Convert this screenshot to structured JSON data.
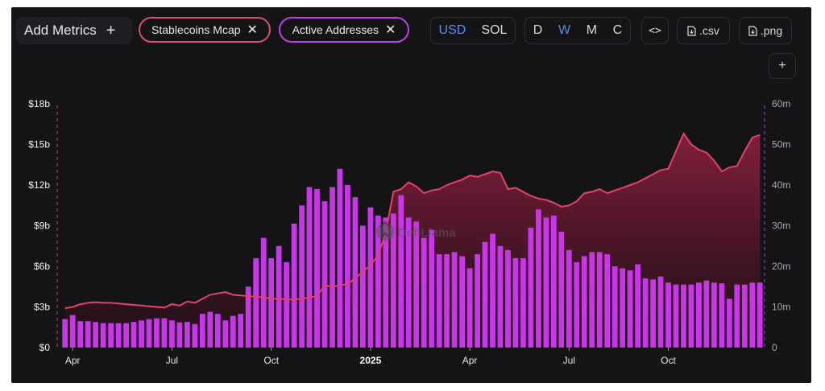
{
  "toolbar": {
    "add_metrics_label": "Add Metrics",
    "add_metrics_icon": "plus-icon",
    "metrics": [
      {
        "label": "Stablecoins Mcap",
        "color": "#d94f70"
      },
      {
        "label": "Active Addresses",
        "color": "#c03fe6"
      }
    ],
    "currency_options": [
      "USD",
      "SOL"
    ],
    "currency_selected": "USD",
    "period_options": [
      "D",
      "W",
      "M",
      "C"
    ],
    "period_selected": "W",
    "embed_label": "<>",
    "csv_label": ".csv",
    "png_label": ".png",
    "expand_label": "+"
  },
  "watermark": "DefiLlama",
  "colors": {
    "line": "#e0446a",
    "area_top": "#8a1f3e",
    "bar": "#c736e8",
    "left_axis_line": "#c64a6a",
    "right_axis_line": "#b43fd6"
  },
  "chart_data": {
    "type": "bar+area",
    "x_tick_labels": [
      "Apr",
      "Jul",
      "Oct",
      "2025",
      "Apr",
      "Jul",
      "Oct"
    ],
    "x_ticks_week_index": [
      1,
      14,
      27,
      40,
      53,
      66,
      79
    ],
    "y_left": {
      "label": "Stablecoins Mcap",
      "ticks": [
        "$0",
        "$3b",
        "$6b",
        "$9b",
        "$12b",
        "$15b",
        "$18b"
      ],
      "range": [
        0,
        18
      ]
    },
    "y_right": {
      "label": "Active Addresses",
      "ticks": [
        "0",
        "10m",
        "20m",
        "30m",
        "40m",
        "50m",
        "60m"
      ],
      "range": [
        0,
        60
      ]
    },
    "series": [
      {
        "name": "Active Addresses",
        "type": "bar",
        "unit": "millions",
        "values": [
          7,
          8,
          6.5,
          6.5,
          6.3,
          6,
          6,
          6,
          6,
          6.3,
          6.7,
          7,
          7.2,
          7.2,
          6.7,
          6.2,
          6.3,
          5.8,
          8.3,
          8.8,
          8.3,
          6.7,
          7.8,
          8.3,
          15,
          22,
          27,
          22,
          25,
          21,
          30.5,
          35,
          39.5,
          39,
          36,
          39.5,
          44,
          40,
          37,
          30,
          34.5,
          32.5,
          32,
          33,
          37.5,
          32,
          31,
          27,
          29,
          23,
          23,
          23.5,
          22.5,
          19.5,
          23,
          26,
          28,
          25,
          24,
          22,
          22,
          29.5,
          34,
          32,
          32.5,
          28.5,
          24,
          21,
          22.5,
          23.5,
          23.5,
          23,
          20,
          19.5,
          19,
          20.5,
          17,
          16.8,
          17.5,
          16,
          15.5,
          15.5,
          15.5,
          16,
          16.5,
          16,
          15.8,
          12,
          15.5,
          15.5,
          16,
          16
        ]
      },
      {
        "name": "Stablecoins Mcap",
        "type": "area",
        "unit": "billions USD",
        "values": [
          2.9,
          3.0,
          3.2,
          3.3,
          3.35,
          3.3,
          3.3,
          3.25,
          3.2,
          3.15,
          3.1,
          3.05,
          3.0,
          2.95,
          3.2,
          3.1,
          3.4,
          3.3,
          3.6,
          3.9,
          4.0,
          4.1,
          3.9,
          3.85,
          3.8,
          3.75,
          3.7,
          3.6,
          3.6,
          3.55,
          3.55,
          3.6,
          3.7,
          3.8,
          4.6,
          4.5,
          4.6,
          4.7,
          5.1,
          5.6,
          6.1,
          6.8,
          8.5,
          11.5,
          11.7,
          12.2,
          11.9,
          11.4,
          11.6,
          11.7,
          12.0,
          12.2,
          12.4,
          12.7,
          12.6,
          12.8,
          13.0,
          12.9,
          11.7,
          11.8,
          11.5,
          11.2,
          11.0,
          10.9,
          10.7,
          10.4,
          10.5,
          10.8,
          11.4,
          11.5,
          11.7,
          11.4,
          11.6,
          11.8,
          12.0,
          12.2,
          12.5,
          12.8,
          13.1,
          13.2,
          14.5,
          15.8,
          15.0,
          14.6,
          14.4,
          13.8,
          13.0,
          13.3,
          13.4,
          14.5,
          15.5,
          15.7
        ]
      }
    ]
  }
}
